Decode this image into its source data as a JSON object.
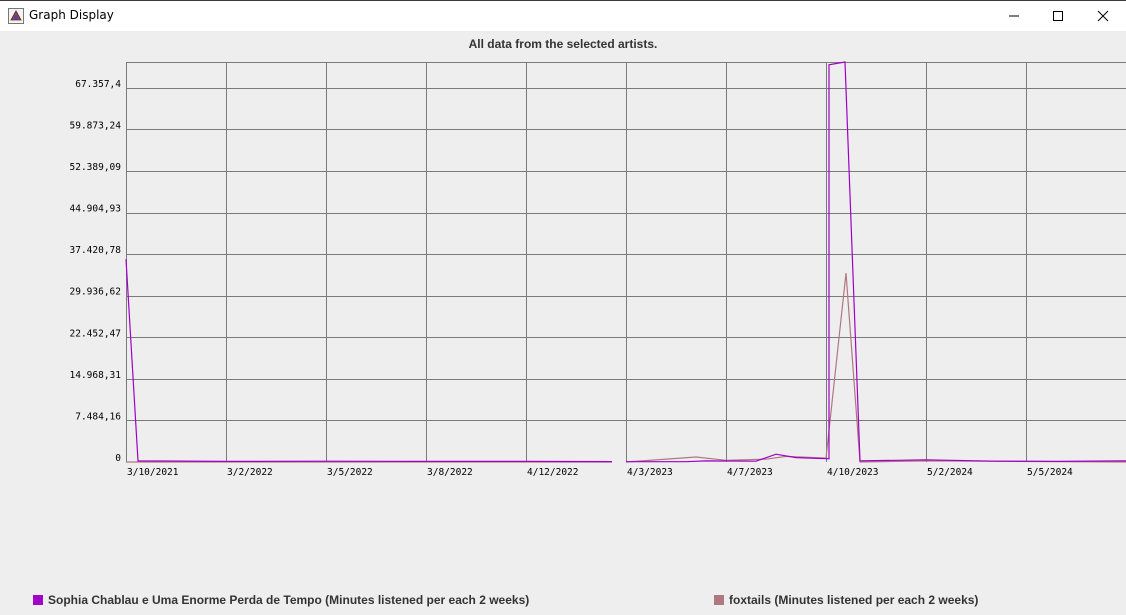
{
  "window": {
    "title": "Graph Display"
  },
  "chart_data": {
    "type": "line",
    "title": "All data from the selected artists.",
    "xlabel": "",
    "ylabel": "",
    "grid": true,
    "legend_position": "bottom",
    "ylim": [
      0,
      72000
    ],
    "y_ticks": [
      "0",
      "7.484,16",
      "14.968,31",
      "22.452,47",
      "29.936,62",
      "37.420,78",
      "44.904,93",
      "52.389,09",
      "59.873,24",
      "67.357,4"
    ],
    "y_tick_values": [
      0,
      7484.16,
      14968.31,
      22452.47,
      29936.62,
      37420.78,
      44904.93,
      52389.09,
      59873.24,
      67357.4
    ],
    "x_ticks": [
      "3/10/2021",
      "3/2/2022",
      "3/5/2022",
      "3/8/2022",
      "4/12/2022",
      "4/3/2023",
      "4/7/2023",
      "4/10/2023",
      "5/2/2024",
      "5/5/2024"
    ],
    "x_index_range": [
      0,
      100
    ],
    "x_tick_positions": [
      0,
      10,
      20,
      30,
      40,
      50,
      60,
      70,
      80,
      90
    ],
    "series": [
      {
        "name": "Sophia Chablau e Uma Enorme Perda de Tempo (Minutes listened per each 2 weeks)",
        "color": "#a000c8",
        "points": [
          [
            0,
            36500
          ],
          [
            1.2,
            200
          ],
          [
            10,
            100
          ],
          [
            20,
            150
          ],
          [
            30,
            100
          ],
          [
            40,
            100
          ],
          [
            48.6,
            80
          ],
          [
            null,
            null
          ],
          [
            50,
            50
          ],
          [
            56,
            60
          ],
          [
            58,
            200
          ],
          [
            63,
            150
          ],
          [
            65,
            1400
          ],
          [
            67,
            800
          ],
          [
            70.3,
            600
          ],
          [
            70.3,
            71500
          ],
          [
            71.9,
            72000
          ],
          [
            73.4,
            200
          ],
          [
            80,
            400
          ],
          [
            87,
            150
          ],
          [
            93,
            100
          ],
          [
            100,
            200
          ]
        ]
      },
      {
        "name": "foxtails (Minutes listened per each 2 weeks)",
        "color": "#b07880",
        "points": [
          [
            0,
            0
          ],
          [
            48.6,
            0
          ],
          [
            null,
            null
          ],
          [
            50,
            0
          ],
          [
            57,
            900
          ],
          [
            60,
            300
          ],
          [
            64,
            500
          ],
          [
            66,
            1000
          ],
          [
            70,
            700
          ],
          [
            72,
            34000
          ],
          [
            73.4,
            0
          ],
          [
            80,
            200
          ],
          [
            100,
            0
          ]
        ]
      }
    ]
  }
}
